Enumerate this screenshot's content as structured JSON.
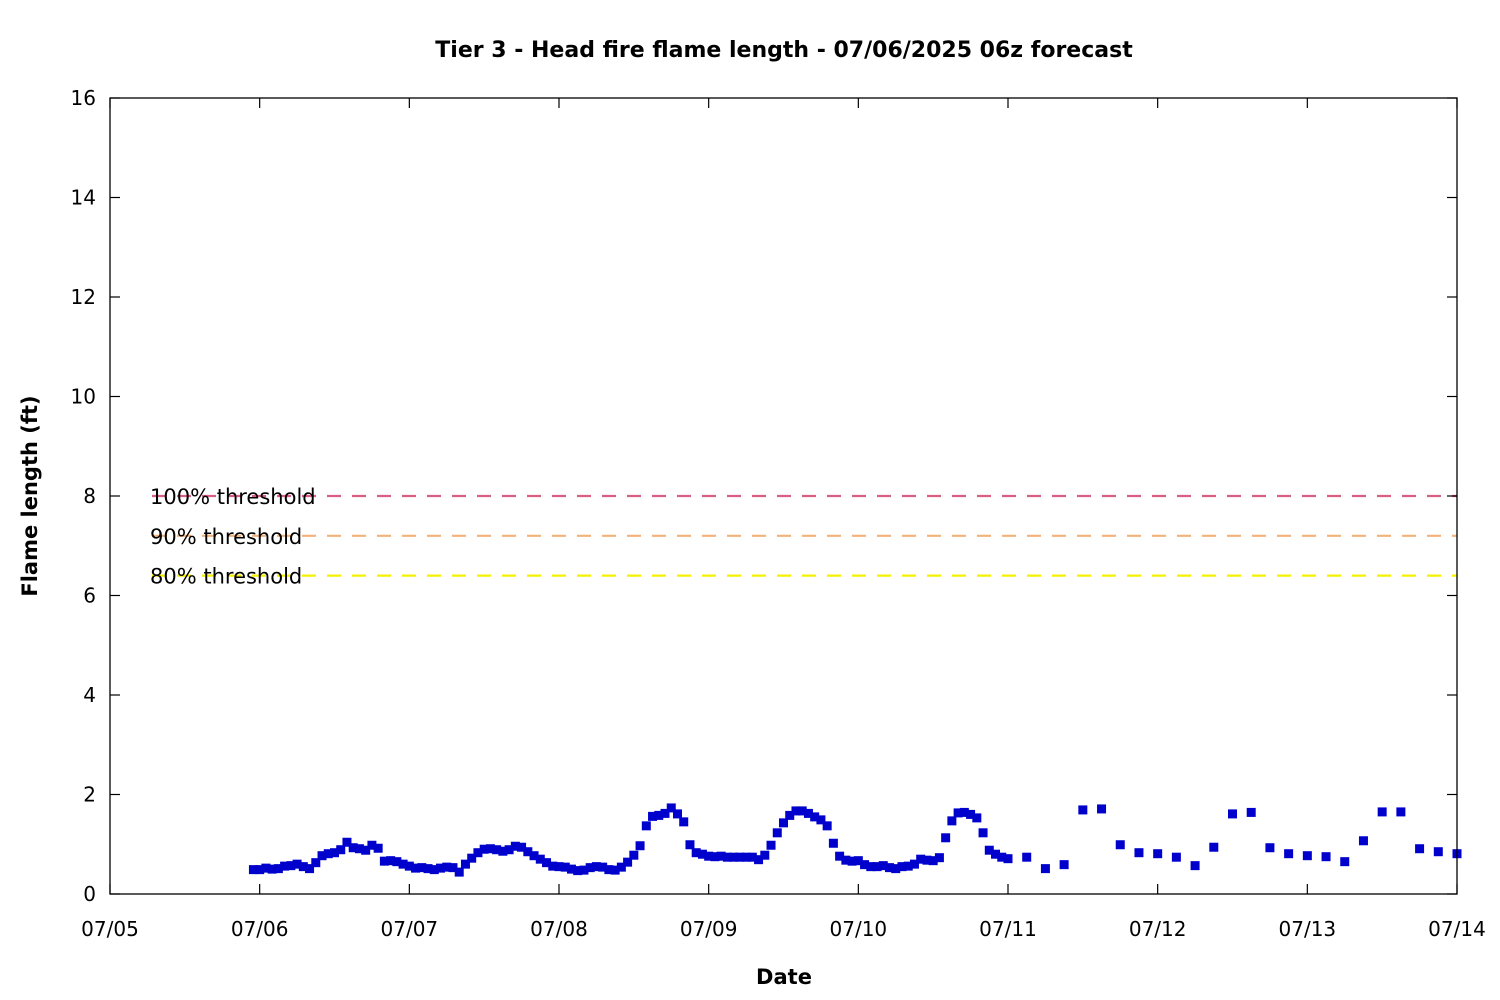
{
  "chart_data": {
    "type": "scatter",
    "title": "Tier 3 - Head fire flame length - 07/06/2025 06z forecast",
    "xlabel": "Date",
    "ylabel": "Flame length (ft)",
    "grid": false,
    "xlim": [
      "2025-07-05 00:00",
      "2025-07-14 00:00"
    ],
    "ylim": [
      0,
      16
    ],
    "x_ticks": [
      "07/05",
      "07/06",
      "07/07",
      "07/08",
      "07/09",
      "07/10",
      "07/11",
      "07/12",
      "07/13",
      "07/14"
    ],
    "y_ticks": [
      "0",
      "2",
      "4",
      "6",
      "8",
      "10",
      "12",
      "14",
      "16"
    ],
    "thresholds": [
      {
        "label": "100% threshold",
        "value": 8.0,
        "color": "#d95f82"
      },
      {
        "label": "90% threshold",
        "value": 7.2,
        "color": "#f2b27a"
      },
      {
        "label": "80% threshold",
        "value": 6.4,
        "color": "#f5f000"
      }
    ],
    "series": [
      {
        "color": "#0000cc",
        "marker": "square",
        "points": [
          [
            "2025-07-05 23:00",
            0.49
          ],
          [
            "2025-07-06 00:00",
            0.49
          ],
          [
            "2025-07-06 01:00",
            0.52
          ],
          [
            "2025-07-06 02:00",
            0.5
          ],
          [
            "2025-07-06 03:00",
            0.51
          ],
          [
            "2025-07-06 04:00",
            0.56
          ],
          [
            "2025-07-06 05:00",
            0.57
          ],
          [
            "2025-07-06 06:00",
            0.6
          ],
          [
            "2025-07-06 07:00",
            0.55
          ],
          [
            "2025-07-06 08:00",
            0.51
          ],
          [
            "2025-07-06 09:00",
            0.63
          ],
          [
            "2025-07-06 10:00",
            0.77
          ],
          [
            "2025-07-06 11:00",
            0.81
          ],
          [
            "2025-07-06 12:00",
            0.83
          ],
          [
            "2025-07-06 13:00",
            0.89
          ],
          [
            "2025-07-06 14:00",
            1.04
          ],
          [
            "2025-07-06 15:00",
            0.93
          ],
          [
            "2025-07-06 16:00",
            0.91
          ],
          [
            "2025-07-06 17:00",
            0.88
          ],
          [
            "2025-07-06 18:00",
            0.98
          ],
          [
            "2025-07-06 19:00",
            0.92
          ],
          [
            "2025-07-06 20:00",
            0.66
          ],
          [
            "2025-07-06 21:00",
            0.67
          ],
          [
            "2025-07-06 22:00",
            0.65
          ],
          [
            "2025-07-06 23:00",
            0.6
          ],
          [
            "2025-07-07 00:00",
            0.56
          ],
          [
            "2025-07-07 01:00",
            0.52
          ],
          [
            "2025-07-07 02:00",
            0.53
          ],
          [
            "2025-07-07 03:00",
            0.51
          ],
          [
            "2025-07-07 04:00",
            0.49
          ],
          [
            "2025-07-07 05:00",
            0.52
          ],
          [
            "2025-07-07 06:00",
            0.54
          ],
          [
            "2025-07-07 07:00",
            0.53
          ],
          [
            "2025-07-07 08:00",
            0.44
          ],
          [
            "2025-07-07 09:00",
            0.6
          ],
          [
            "2025-07-07 10:00",
            0.72
          ],
          [
            "2025-07-07 11:00",
            0.83
          ],
          [
            "2025-07-07 12:00",
            0.9
          ],
          [
            "2025-07-07 13:00",
            0.91
          ],
          [
            "2025-07-07 14:00",
            0.89
          ],
          [
            "2025-07-07 15:00",
            0.86
          ],
          [
            "2025-07-07 16:00",
            0.89
          ],
          [
            "2025-07-07 17:00",
            0.96
          ],
          [
            "2025-07-07 18:00",
            0.94
          ],
          [
            "2025-07-07 19:00",
            0.85
          ],
          [
            "2025-07-07 20:00",
            0.77
          ],
          [
            "2025-07-07 21:00",
            0.7
          ],
          [
            "2025-07-07 22:00",
            0.63
          ],
          [
            "2025-07-07 23:00",
            0.56
          ],
          [
            "2025-07-08 00:00",
            0.55
          ],
          [
            "2025-07-08 01:00",
            0.54
          ],
          [
            "2025-07-08 02:00",
            0.5
          ],
          [
            "2025-07-08 03:00",
            0.47
          ],
          [
            "2025-07-08 04:00",
            0.48
          ],
          [
            "2025-07-08 05:00",
            0.53
          ],
          [
            "2025-07-08 06:00",
            0.55
          ],
          [
            "2025-07-08 07:00",
            0.54
          ],
          [
            "2025-07-08 08:00",
            0.49
          ],
          [
            "2025-07-08 09:00",
            0.48
          ],
          [
            "2025-07-08 10:00",
            0.54
          ],
          [
            "2025-07-08 11:00",
            0.64
          ],
          [
            "2025-07-08 12:00",
            0.78
          ],
          [
            "2025-07-08 13:00",
            0.97
          ],
          [
            "2025-07-08 14:00",
            1.37
          ],
          [
            "2025-07-08 15:00",
            1.56
          ],
          [
            "2025-07-08 16:00",
            1.58
          ],
          [
            "2025-07-08 17:00",
            1.62
          ],
          [
            "2025-07-08 18:00",
            1.73
          ],
          [
            "2025-07-08 19:00",
            1.61
          ],
          [
            "2025-07-08 20:00",
            1.45
          ],
          [
            "2025-07-08 21:00",
            0.99
          ],
          [
            "2025-07-08 22:00",
            0.83
          ],
          [
            "2025-07-08 23:00",
            0.8
          ],
          [
            "2025-07-09 00:00",
            0.76
          ],
          [
            "2025-07-09 01:00",
            0.75
          ],
          [
            "2025-07-09 02:00",
            0.76
          ],
          [
            "2025-07-09 03:00",
            0.74
          ],
          [
            "2025-07-09 04:00",
            0.74
          ],
          [
            "2025-07-09 05:00",
            0.74
          ],
          [
            "2025-07-09 06:00",
            0.74
          ],
          [
            "2025-07-09 07:00",
            0.74
          ],
          [
            "2025-07-09 08:00",
            0.69
          ],
          [
            "2025-07-09 09:00",
            0.78
          ],
          [
            "2025-07-09 10:00",
            0.98
          ],
          [
            "2025-07-09 11:00",
            1.23
          ],
          [
            "2025-07-09 12:00",
            1.43
          ],
          [
            "2025-07-09 13:00",
            1.58
          ],
          [
            "2025-07-09 14:00",
            1.67
          ],
          [
            "2025-07-09 15:00",
            1.67
          ],
          [
            "2025-07-09 16:00",
            1.62
          ],
          [
            "2025-07-09 17:00",
            1.55
          ],
          [
            "2025-07-09 18:00",
            1.49
          ],
          [
            "2025-07-09 19:00",
            1.37
          ],
          [
            "2025-07-09 20:00",
            1.02
          ],
          [
            "2025-07-09 21:00",
            0.76
          ],
          [
            "2025-07-09 22:00",
            0.68
          ],
          [
            "2025-07-09 23:00",
            0.66
          ],
          [
            "2025-07-10 00:00",
            0.67
          ],
          [
            "2025-07-10 01:00",
            0.59
          ],
          [
            "2025-07-10 02:00",
            0.55
          ],
          [
            "2025-07-10 03:00",
            0.55
          ],
          [
            "2025-07-10 04:00",
            0.57
          ],
          [
            "2025-07-10 05:00",
            0.53
          ],
          [
            "2025-07-10 06:00",
            0.51
          ],
          [
            "2025-07-10 07:00",
            0.55
          ],
          [
            "2025-07-10 08:00",
            0.56
          ],
          [
            "2025-07-10 09:00",
            0.6
          ],
          [
            "2025-07-10 10:00",
            0.7
          ],
          [
            "2025-07-10 11:00",
            0.68
          ],
          [
            "2025-07-10 12:00",
            0.67
          ],
          [
            "2025-07-10 13:00",
            0.73
          ],
          [
            "2025-07-10 14:00",
            1.13
          ],
          [
            "2025-07-10 15:00",
            1.47
          ],
          [
            "2025-07-10 16:00",
            1.63
          ],
          [
            "2025-07-10 17:00",
            1.64
          ],
          [
            "2025-07-10 18:00",
            1.6
          ],
          [
            "2025-07-10 19:00",
            1.53
          ],
          [
            "2025-07-10 20:00",
            1.23
          ],
          [
            "2025-07-10 21:00",
            0.88
          ],
          [
            "2025-07-10 22:00",
            0.8
          ],
          [
            "2025-07-10 23:00",
            0.74
          ],
          [
            "2025-07-11 00:00",
            0.71
          ],
          [
            "2025-07-11 03:00",
            0.74
          ],
          [
            "2025-07-11 06:00",
            0.51
          ],
          [
            "2025-07-11 09:00",
            0.59
          ],
          [
            "2025-07-11 12:00",
            1.69
          ],
          [
            "2025-07-11 15:00",
            1.71
          ],
          [
            "2025-07-11 18:00",
            0.99
          ],
          [
            "2025-07-11 21:00",
            0.83
          ],
          [
            "2025-07-12 00:00",
            0.81
          ],
          [
            "2025-07-12 03:00",
            0.74
          ],
          [
            "2025-07-12 06:00",
            0.57
          ],
          [
            "2025-07-12 09:00",
            0.94
          ],
          [
            "2025-07-12 12:00",
            1.61
          ],
          [
            "2025-07-12 15:00",
            1.64
          ],
          [
            "2025-07-12 18:00",
            0.93
          ],
          [
            "2025-07-12 21:00",
            0.81
          ],
          [
            "2025-07-13 00:00",
            0.77
          ],
          [
            "2025-07-13 03:00",
            0.75
          ],
          [
            "2025-07-13 06:00",
            0.65
          ],
          [
            "2025-07-13 09:00",
            1.07
          ],
          [
            "2025-07-13 12:00",
            1.65
          ],
          [
            "2025-07-13 15:00",
            1.65
          ],
          [
            "2025-07-13 18:00",
            0.91
          ],
          [
            "2025-07-13 21:00",
            0.85
          ],
          [
            "2025-07-14 00:00",
            0.81
          ]
        ]
      }
    ]
  }
}
